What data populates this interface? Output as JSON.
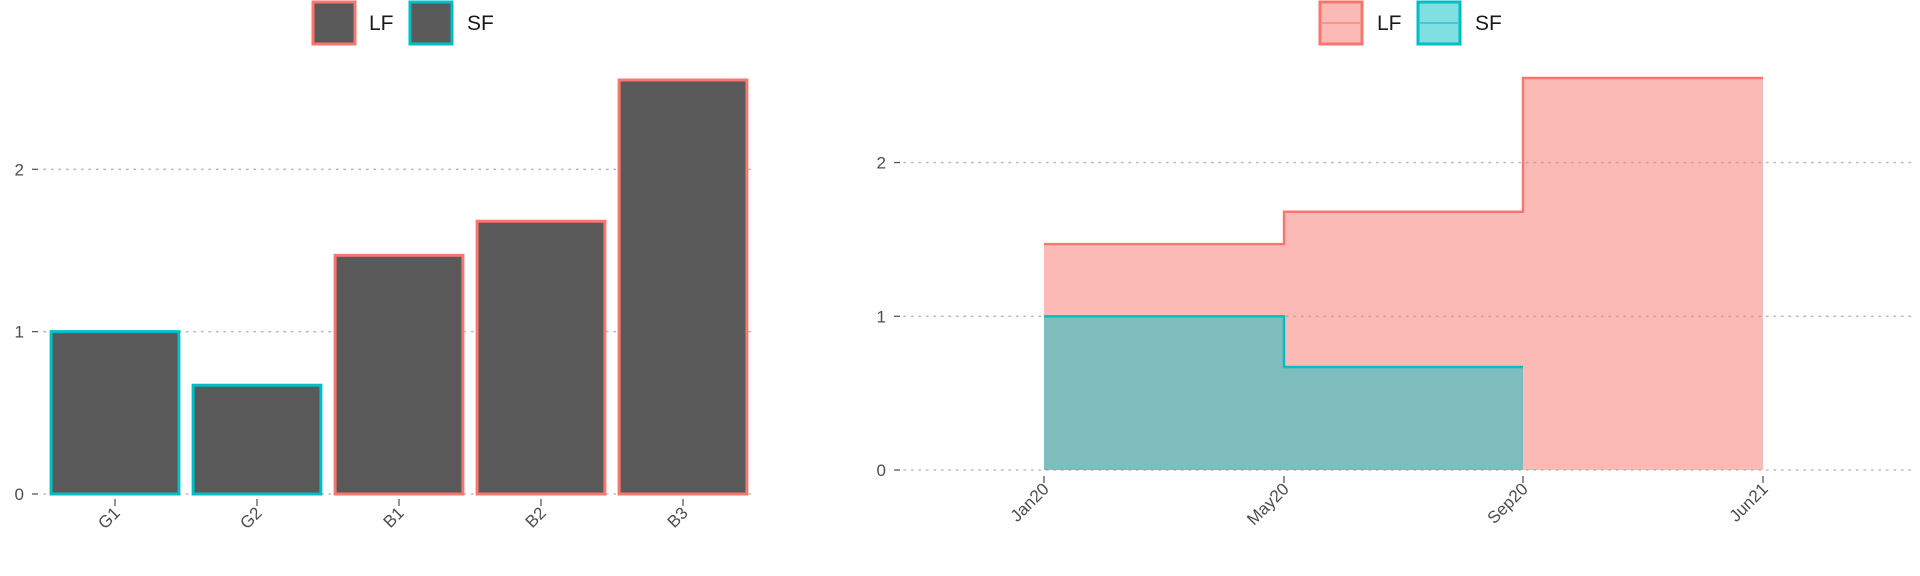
{
  "colors": {
    "lf": "#F8766D",
    "sf": "#00BFC4",
    "bar_fill": "#595959",
    "lf_area": "#F8766D",
    "sf_area": "#00BFC4",
    "grid": "#bdbdbd",
    "axis_text": "#4d4d4d"
  },
  "chart_data": [
    {
      "type": "bar",
      "title": "",
      "xlabel": "",
      "ylabel": "",
      "legend": {
        "position": "top",
        "entries": [
          "LF",
          "SF"
        ]
      },
      "categories": [
        "G1",
        "G2",
        "B1",
        "B2",
        "B3"
      ],
      "values": [
        1.0,
        0.67,
        1.47,
        1.68,
        2.55
      ],
      "groups": [
        "SF",
        "SF",
        "LF",
        "LF",
        "LF"
      ],
      "ylim": [
        0,
        2.55
      ],
      "yticks": [
        0,
        1,
        2
      ],
      "grid": "horizontal dotted"
    },
    {
      "type": "area",
      "title": "",
      "xlabel": "",
      "ylabel": "",
      "legend": {
        "position": "top",
        "entries": [
          "LF",
          "SF"
        ]
      },
      "xticks": [
        "Jan20",
        "May20",
        "Sep20",
        "Jun21"
      ],
      "series": [
        {
          "name": "LF",
          "x": [
            "Jan20",
            "May20",
            "Sep20",
            "Jun21"
          ],
          "y": [
            1.47,
            1.68,
            2.55,
            2.55
          ],
          "step": "post"
        },
        {
          "name": "SF",
          "x": [
            "Jan20",
            "May20",
            "Sep20"
          ],
          "y": [
            1.0,
            0.67,
            0.67
          ],
          "step": "post"
        }
      ],
      "ylim": [
        0,
        2.55
      ],
      "yticks": [
        0,
        1,
        2
      ],
      "grid": "horizontal dotted"
    }
  ]
}
